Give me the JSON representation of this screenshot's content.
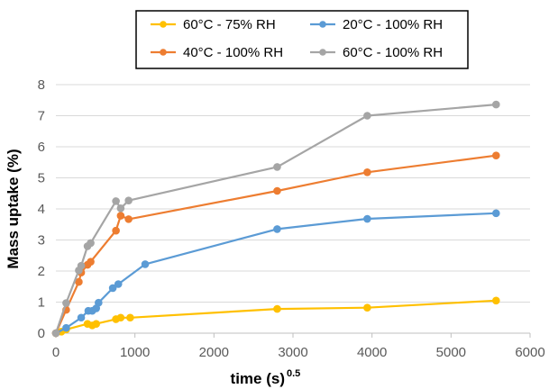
{
  "chart_data": {
    "type": "line",
    "xlabel": "time (s)",
    "xlabel_superscript": "0.5",
    "ylabel": "Mass uptake (%)",
    "xlim": [
      0,
      6000
    ],
    "ylim": [
      0,
      8
    ],
    "xticks": [
      0,
      1000,
      2000,
      3000,
      4000,
      5000,
      6000
    ],
    "yticks": [
      0,
      1,
      2,
      3,
      4,
      5,
      6,
      7,
      8
    ],
    "grid": "horizontal",
    "legend_position": "top-center",
    "series": [
      {
        "name": "60°C - 75% RH",
        "color": "#FFC000",
        "x": [
          0,
          70,
          130,
          400,
          460,
          510,
          760,
          820,
          940,
          2800,
          3940,
          5570
        ],
        "y": [
          0,
          0.05,
          0.12,
          0.3,
          0.25,
          0.3,
          0.45,
          0.5,
          0.5,
          0.78,
          0.82,
          1.05
        ]
      },
      {
        "name": "20°C - 100% RH",
        "color": "#5B9BD5",
        "x": [
          0,
          130,
          320,
          410,
          460,
          510,
          540,
          720,
          790,
          1130,
          2800,
          3940,
          5570
        ],
        "y": [
          0,
          0.17,
          0.5,
          0.72,
          0.72,
          0.8,
          0.98,
          1.45,
          1.58,
          2.22,
          3.35,
          3.68,
          3.86
        ]
      },
      {
        "name": "40°C - 100% RH",
        "color": "#ED7D31",
        "x": [
          0,
          130,
          290,
          320,
          400,
          440,
          760,
          820,
          920,
          2800,
          3940,
          5570
        ],
        "y": [
          0,
          0.75,
          1.65,
          1.95,
          2.2,
          2.3,
          3.3,
          3.78,
          3.67,
          4.58,
          5.18,
          5.72
        ]
      },
      {
        "name": "60°C - 100% RH",
        "color": "#A5A5A5",
        "x": [
          0,
          130,
          290,
          320,
          400,
          440,
          760,
          820,
          920,
          2800,
          3940,
          5570
        ],
        "y": [
          0,
          0.97,
          2.02,
          2.17,
          2.8,
          2.9,
          4.25,
          4.02,
          4.27,
          5.35,
          7.0,
          7.36
        ]
      }
    ]
  }
}
